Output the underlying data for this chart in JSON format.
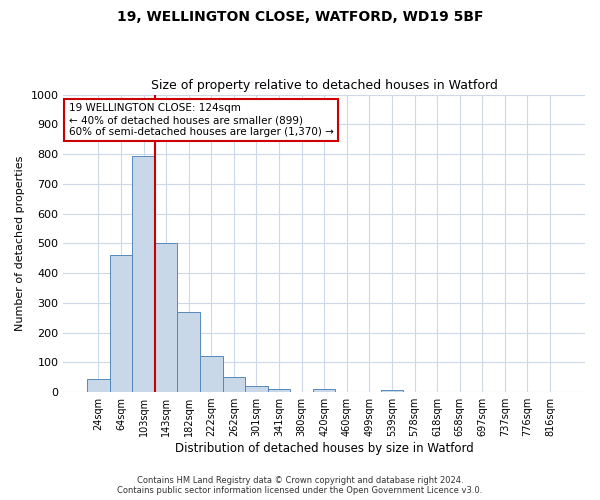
{
  "title1": "19, WELLINGTON CLOSE, WATFORD, WD19 5BF",
  "title2": "Size of property relative to detached houses in Watford",
  "xlabel": "Distribution of detached houses by size in Watford",
  "ylabel": "Number of detached properties",
  "categories": [
    "24sqm",
    "64sqm",
    "103sqm",
    "143sqm",
    "182sqm",
    "222sqm",
    "262sqm",
    "301sqm",
    "341sqm",
    "380sqm",
    "420sqm",
    "460sqm",
    "499sqm",
    "539sqm",
    "578sqm",
    "618sqm",
    "658sqm",
    "697sqm",
    "737sqm",
    "776sqm",
    "816sqm"
  ],
  "bar_heights": [
    45,
    460,
    795,
    500,
    270,
    120,
    50,
    20,
    12,
    0,
    12,
    0,
    0,
    8,
    0,
    0,
    0,
    0,
    0,
    0,
    0
  ],
  "bar_color": "#c8d8e8",
  "bar_edge_color": "#5588bb",
  "vline_x": 2.5,
  "vline_color": "#cc0000",
  "annotation_text": "19 WELLINGTON CLOSE: 124sqm\n← 40% of detached houses are smaller (899)\n60% of semi-detached houses are larger (1,370) →",
  "annotation_box_color": "#ffffff",
  "annotation_box_edge": "#cc0000",
  "ylim": [
    0,
    1000
  ],
  "yticks": [
    0,
    100,
    200,
    300,
    400,
    500,
    600,
    700,
    800,
    900,
    1000
  ],
  "footer1": "Contains HM Land Registry data © Crown copyright and database right 2024.",
  "footer2": "Contains public sector information licensed under the Open Government Licence v3.0.",
  "bg_color": "#ffffff",
  "grid_color": "#ccd9e8"
}
